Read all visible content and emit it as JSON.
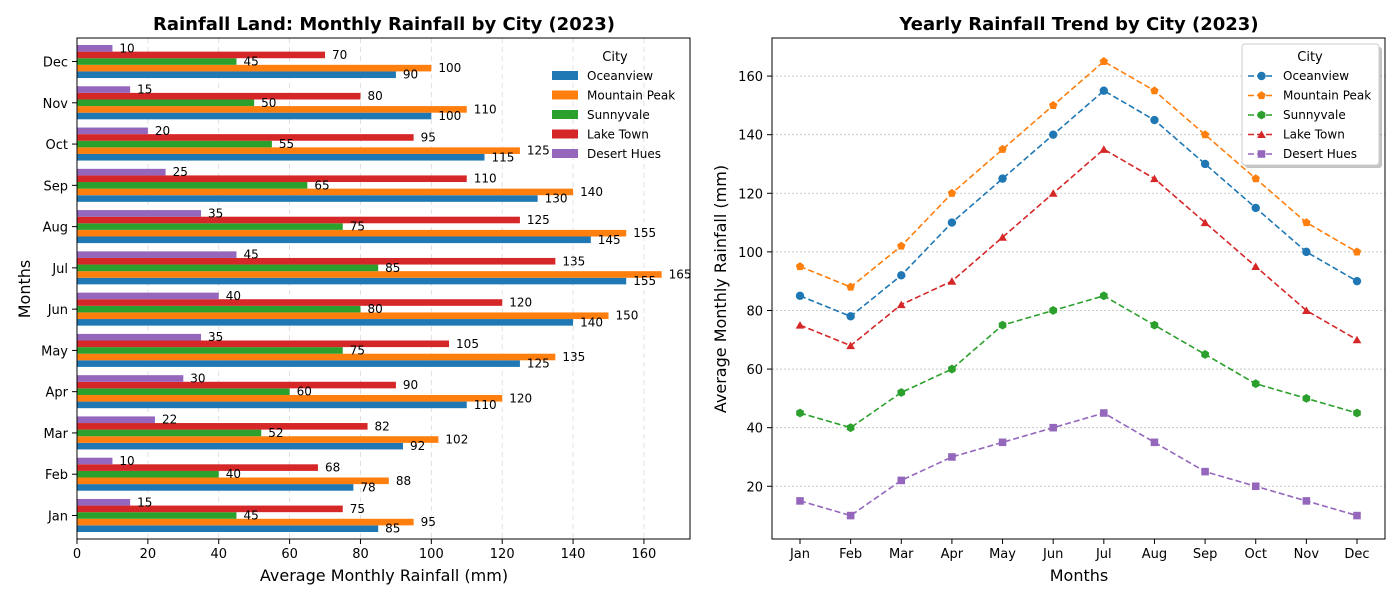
{
  "colors": {
    "Oceanview": "#1f77b4",
    "Mountain Peak": "#ff7f0e",
    "Sunnyvale": "#2ca02c",
    "Lake Town": "#d62728",
    "Desert Hues": "#9467bd"
  },
  "chart_data": [
    {
      "type": "bar",
      "orientation": "horizontal",
      "title": "Rainfall Land: Monthly Rainfall by City (2023)",
      "xlabel": "Average Monthly Rainfall (mm)",
      "ylabel": "Months",
      "xlim": [
        0,
        173
      ],
      "xticks": [
        0,
        20,
        40,
        60,
        80,
        100,
        120,
        140,
        160
      ],
      "grid": "x dashed",
      "legend_title": "City",
      "legend_position": "top-right",
      "categories": [
        "Jan",
        "Feb",
        "Mar",
        "Apr",
        "May",
        "Jun",
        "Jul",
        "Aug",
        "Sep",
        "Oct",
        "Nov",
        "Dec"
      ],
      "series": [
        {
          "name": "Oceanview",
          "values": [
            85,
            78,
            92,
            110,
            125,
            140,
            155,
            145,
            130,
            115,
            100,
            90
          ]
        },
        {
          "name": "Mountain Peak",
          "values": [
            95,
            88,
            102,
            120,
            135,
            150,
            165,
            155,
            140,
            125,
            110,
            100
          ]
        },
        {
          "name": "Sunnyvale",
          "values": [
            45,
            40,
            52,
            60,
            75,
            80,
            85,
            75,
            65,
            55,
            50,
            45
          ]
        },
        {
          "name": "Lake Town",
          "values": [
            75,
            68,
            82,
            90,
            105,
            120,
            135,
            125,
            110,
            95,
            80,
            70
          ]
        },
        {
          "name": "Desert Hues",
          "values": [
            15,
            10,
            22,
            30,
            35,
            40,
            45,
            35,
            25,
            20,
            15,
            10
          ]
        }
      ]
    },
    {
      "type": "line",
      "title": "Yearly Rainfall Trend by City (2023)",
      "xlabel": "Months",
      "ylabel": "Average Monthly Rainfall (mm)",
      "ylim": [
        2,
        173
      ],
      "yticks": [
        20,
        40,
        60,
        80,
        100,
        120,
        140,
        160
      ],
      "grid": "y dotted",
      "legend_title": "City",
      "legend_position": "top-right",
      "categories": [
        "Jan",
        "Feb",
        "Mar",
        "Apr",
        "May",
        "Jun",
        "Jul",
        "Aug",
        "Sep",
        "Oct",
        "Nov",
        "Dec"
      ],
      "series": [
        {
          "name": "Oceanview",
          "marker": "circle",
          "values": [
            85,
            78,
            92,
            110,
            125,
            140,
            155,
            145,
            130,
            115,
            100,
            90
          ]
        },
        {
          "name": "Mountain Peak",
          "marker": "pentagon",
          "values": [
            95,
            88,
            102,
            120,
            135,
            150,
            165,
            155,
            140,
            125,
            110,
            100
          ]
        },
        {
          "name": "Sunnyvale",
          "marker": "hexagon",
          "values": [
            45,
            40,
            52,
            60,
            75,
            80,
            85,
            75,
            65,
            55,
            50,
            45
          ]
        },
        {
          "name": "Lake Town",
          "marker": "triangle",
          "values": [
            75,
            68,
            82,
            90,
            105,
            120,
            135,
            125,
            110,
            95,
            80,
            70
          ]
        },
        {
          "name": "Desert Hues",
          "marker": "square",
          "values": [
            15,
            10,
            22,
            30,
            35,
            40,
            45,
            35,
            25,
            20,
            15,
            10
          ]
        }
      ]
    }
  ]
}
